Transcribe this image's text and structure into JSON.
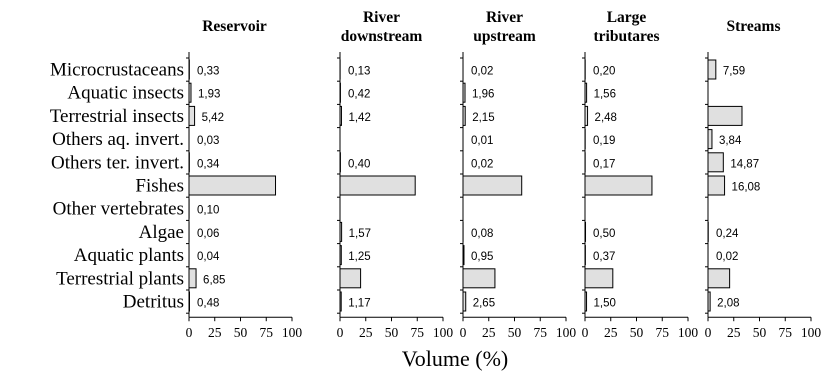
{
  "chart_data": {
    "type": "bar",
    "orientation": "horizontal",
    "categories": [
      "Microcrustaceans",
      "Aquatic insects",
      "Terrestrial insects",
      "Others aq. invert.",
      "Others ter. invert.",
      "Fishes",
      "Other vertebrates",
      "Algae",
      "Aquatic plants",
      "Terrestrial plants",
      "Detritus"
    ],
    "xlabel": "Volume (%)",
    "xlim": [
      0,
      100
    ],
    "xticks": [
      "0",
      "25",
      "50",
      "75",
      "100"
    ],
    "panels": [
      {
        "title": "Reservoir",
        "values": [
          0.33,
          1.93,
          5.42,
          0.03,
          0.34,
          84.0,
          0.1,
          0.06,
          0.04,
          6.85,
          0.48
        ],
        "labels": [
          "0,33",
          "1,93",
          "5,42",
          "0,03",
          "0,34",
          "",
          "0,10",
          "0,06",
          "0,04",
          "6,85",
          "0,48"
        ]
      },
      {
        "title": "River downstream",
        "values": [
          0.13,
          0.42,
          1.42,
          0,
          0.4,
          73.0,
          0,
          1.57,
          1.25,
          20.0,
          1.17
        ],
        "labels": [
          "0,13",
          "0,42",
          "1,42",
          "",
          "0,40",
          "",
          "",
          "1,57",
          "1,25",
          "",
          "1,17"
        ]
      },
      {
        "title": "River upstream",
        "values": [
          0.02,
          1.96,
          2.15,
          0.01,
          0.02,
          57.0,
          0,
          0.08,
          0.95,
          31.0,
          2.65
        ],
        "labels": [
          "0,02",
          "1,96",
          "2,15",
          "0,01",
          "0,02",
          "",
          "",
          "0,08",
          "0,95",
          "",
          "2,65"
        ]
      },
      {
        "title": "Large tributares",
        "values": [
          0.2,
          1.56,
          2.48,
          0.19,
          0.17,
          65.0,
          0,
          0.5,
          0.37,
          27.0,
          1.5
        ],
        "labels": [
          "0,20",
          "1,56",
          "2,48",
          "0,19",
          "0,17",
          "",
          "",
          "0,50",
          "0,37",
          "",
          "1,50"
        ]
      },
      {
        "title": "Streams",
        "values": [
          7.59,
          0,
          33.0,
          3.84,
          14.87,
          16.08,
          0,
          0.24,
          0.02,
          21.0,
          2.08
        ],
        "labels": [
          "7,59",
          "",
          "",
          "3,84",
          "14,87",
          "16,08",
          "",
          "0,24",
          "0,02",
          "",
          "2,08"
        ]
      }
    ],
    "grid": false,
    "legend": "none"
  }
}
